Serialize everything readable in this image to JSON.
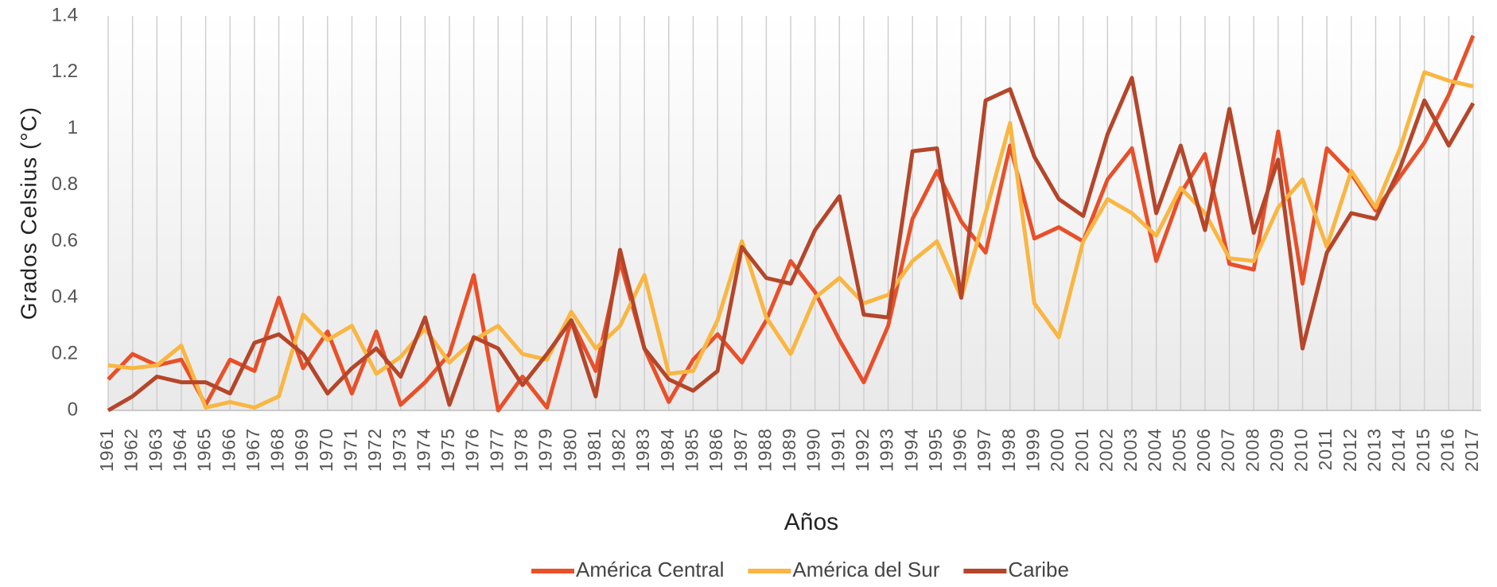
{
  "chart_data": {
    "type": "line",
    "y_label": "Grados Celsius (°C)",
    "x_label": "Años",
    "categories": [
      "1961",
      "1962",
      "1963",
      "1964",
      "1965",
      "1966",
      "1967",
      "1968",
      "1969",
      "1970",
      "1971",
      "1972",
      "1973",
      "1974",
      "1975",
      "1976",
      "1977",
      "1978",
      "1979",
      "1980",
      "1981",
      "1982",
      "1983",
      "1984",
      "1985",
      "1986",
      "1987",
      "1988",
      "1989",
      "1990",
      "1991",
      "1992",
      "1993",
      "1994",
      "1995",
      "1996",
      "1997",
      "1998",
      "1999",
      "2000",
      "2001",
      "2002",
      "2003",
      "2004",
      "2005",
      "2006",
      "2007",
      "2008",
      "2009",
      "2010",
      "2011",
      "2012",
      "2013",
      "2014",
      "2015",
      "2016",
      "2017"
    ],
    "series": [
      {
        "name": "América Central",
        "color": "#e8502a",
        "values": [
          0.11,
          0.2,
          0.16,
          0.18,
          0.02,
          0.18,
          0.14,
          0.4,
          0.15,
          0.28,
          0.06,
          0.28,
          0.02,
          0.1,
          0.2,
          0.48,
          0.0,
          0.12,
          0.01,
          0.32,
          0.14,
          0.53,
          0.22,
          0.03,
          0.18,
          0.27,
          0.17,
          0.32,
          0.53,
          0.42,
          0.25,
          0.1,
          0.3,
          0.68,
          0.85,
          0.67,
          0.56,
          0.94,
          0.61,
          0.65,
          0.6,
          0.82,
          0.93,
          0.53,
          0.77,
          0.91,
          0.52,
          0.5,
          0.99,
          0.45,
          0.93,
          0.84,
          0.71,
          0.83,
          0.95,
          1.12,
          1.33
        ]
      },
      {
        "name": "América del Sur",
        "color": "#f9b642",
        "values": [
          0.16,
          0.15,
          0.16,
          0.23,
          0.01,
          0.03,
          0.01,
          0.05,
          0.34,
          0.25,
          0.3,
          0.13,
          0.19,
          0.29,
          0.17,
          0.25,
          0.3,
          0.2,
          0.18,
          0.35,
          0.22,
          0.3,
          0.48,
          0.13,
          0.14,
          0.32,
          0.6,
          0.33,
          0.2,
          0.4,
          0.47,
          0.38,
          0.41,
          0.53,
          0.6,
          0.4,
          0.7,
          1.02,
          0.38,
          0.26,
          0.6,
          0.75,
          0.7,
          0.62,
          0.79,
          0.7,
          0.54,
          0.53,
          0.72,
          0.82,
          0.58,
          0.85,
          0.72,
          0.93,
          1.2,
          1.17,
          1.15
        ]
      },
      {
        "name": "Caribe",
        "color": "#b5462a",
        "values": [
          0.0,
          0.05,
          0.12,
          0.1,
          0.1,
          0.06,
          0.24,
          0.27,
          0.2,
          0.06,
          0.15,
          0.22,
          0.12,
          0.33,
          0.02,
          0.26,
          0.22,
          0.09,
          0.2,
          0.32,
          0.05,
          0.57,
          0.22,
          0.11,
          0.07,
          0.14,
          0.58,
          0.47,
          0.45,
          0.64,
          0.76,
          0.34,
          0.33,
          0.92,
          0.93,
          0.4,
          1.1,
          1.14,
          0.9,
          0.75,
          0.69,
          0.98,
          1.18,
          0.7,
          0.94,
          0.64,
          1.07,
          0.63,
          0.89,
          0.22,
          0.56,
          0.7,
          0.68,
          0.86,
          1.1,
          0.94,
          1.09
        ]
      }
    ],
    "ylim": [
      0,
      1.4
    ],
    "yticks": [
      0,
      0.2,
      0.4,
      0.6,
      0.8,
      1,
      1.2,
      1.4
    ],
    "grid": "x",
    "legend": "bottom"
  }
}
